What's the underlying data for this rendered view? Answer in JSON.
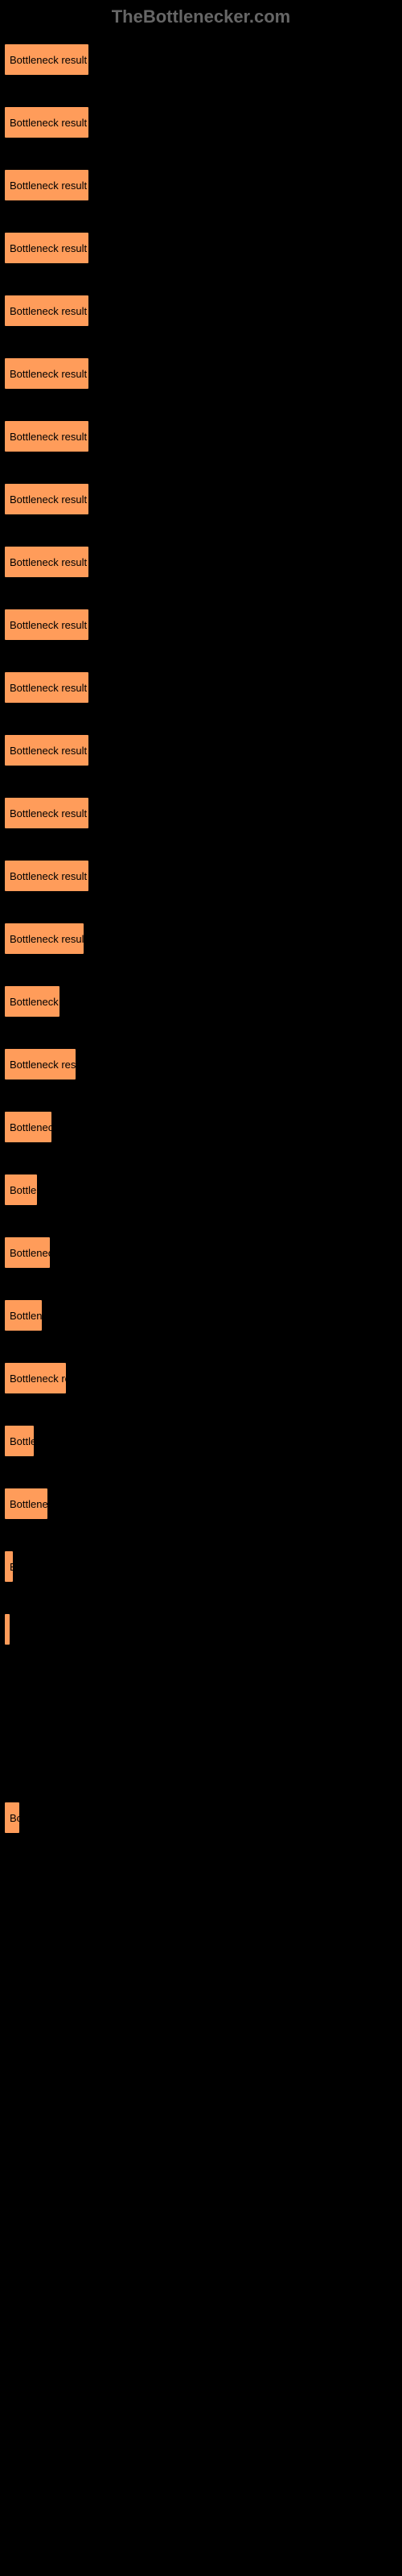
{
  "header": {
    "title": "TheBottlenecker.com"
  },
  "chart": {
    "bar_color": "#ff9c5a",
    "bar_border": "#000000",
    "label": "Bottleneck result",
    "bars": [
      {
        "width": 106
      },
      {
        "width": 106
      },
      {
        "width": 106
      },
      {
        "width": 106
      },
      {
        "width": 106
      },
      {
        "width": 106
      },
      {
        "width": 106
      },
      {
        "width": 106
      },
      {
        "width": 106
      },
      {
        "width": 106
      },
      {
        "width": 106
      },
      {
        "width": 106
      },
      {
        "width": 106
      },
      {
        "width": 106
      },
      {
        "width": 100
      },
      {
        "width": 70
      },
      {
        "width": 90
      },
      {
        "width": 60
      },
      {
        "width": 42
      },
      {
        "width": 58
      },
      {
        "width": 48
      },
      {
        "width": 78
      },
      {
        "width": 38
      },
      {
        "width": 55
      },
      {
        "width": 12
      },
      {
        "width": 3
      },
      {
        "width": 0
      },
      {
        "width": 0
      },
      {
        "width": 20
      },
      {
        "width": 0
      },
      {
        "width": 0
      },
      {
        "width": 0
      },
      {
        "width": 0
      },
      {
        "width": 0
      },
      {
        "width": 0
      },
      {
        "width": 0
      },
      {
        "width": 0
      },
      {
        "width": 0
      },
      {
        "width": 0
      },
      {
        "width": 0
      }
    ]
  }
}
